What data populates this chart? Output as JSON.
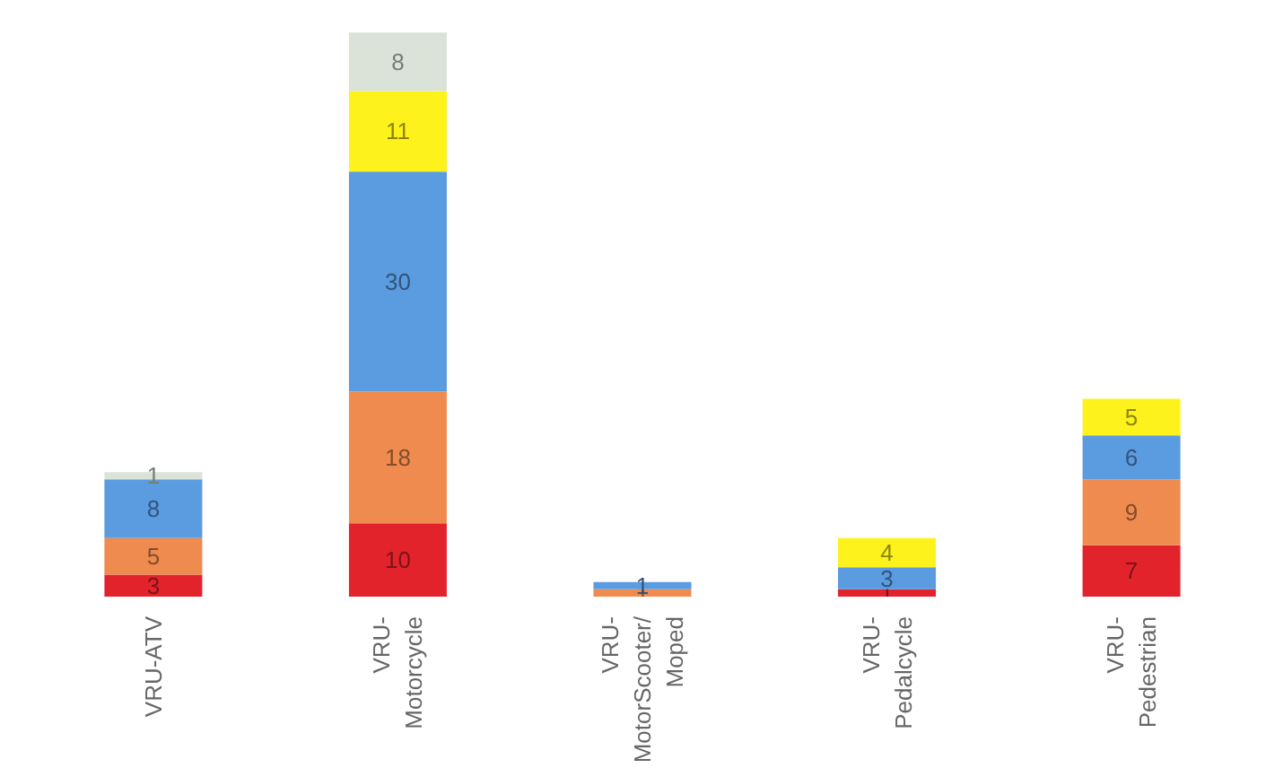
{
  "chart_data": {
    "type": "bar",
    "stacked": true,
    "data_labels": true,
    "categories": [
      "VRU-ATV",
      "VRU-\nMotorcycle",
      "VRU-\nMotorScooter/\nMoped",
      "VRU-\nPedalcycle",
      "VRU-\nPedestrian"
    ],
    "series": [
      {
        "color": "#e3232c",
        "values": [
          3,
          10,
          null,
          1,
          7
        ]
      },
      {
        "color": "#ef8b4f",
        "values": [
          5,
          18,
          1,
          null,
          9
        ]
      },
      {
        "color": "#5b9be0",
        "values": [
          8,
          30,
          1,
          3,
          6
        ]
      },
      {
        "color": "#fdf21c",
        "values": [
          null,
          11,
          null,
          4,
          5
        ]
      },
      {
        "color": "#dbe3d9",
        "values": [
          1,
          8,
          null,
          null,
          null
        ]
      }
    ]
  }
}
